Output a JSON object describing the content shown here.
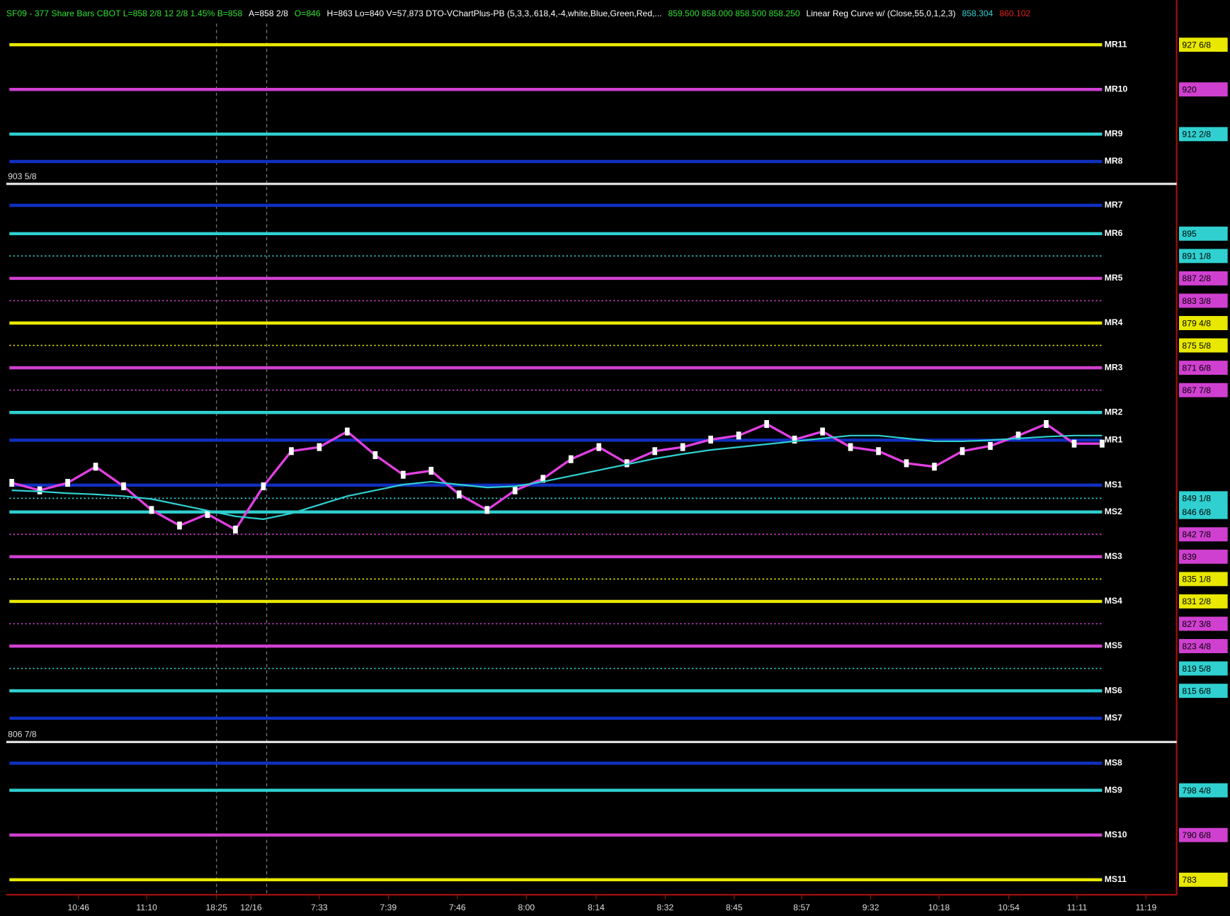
{
  "chart_data": {
    "type": "pivot-levels",
    "header": [
      {
        "text": "SF09 - 377 Share Bars CBOT L=858 2/8 12 2/8 1.45% B=858",
        "color": "#30e030"
      },
      {
        "text": "A=858 2/8",
        "color": "#ffffff"
      },
      {
        "text": "O=846",
        "color": "#30e030"
      },
      {
        "text": "H=863 Lo=840 V=57,873 DTO-VChartPlus-PB (5,3,3,.618,4,-4,white,Blue,Green,Red,...",
        "color": "#ffffff"
      },
      {
        "text": "859.500 858.000 858.500 858.250",
        "color": "#30e030"
      },
      {
        "text": "Linear Reg Curve w/ (Close,55,0,1,2,3)",
        "color": "#ffffff"
      },
      {
        "text": "858.304",
        "color": "#30d0d0"
      },
      {
        "text": "860.102",
        "color": "#e02020"
      }
    ],
    "ylim": [
      780.4,
      934.4
    ],
    "levels": [
      {
        "name": "MR11",
        "value": 927.75,
        "color": "#e8e800"
      },
      {
        "name": "MR10",
        "value": 920,
        "color": "#d040d0"
      },
      {
        "name": "MR9",
        "value": 912.25,
        "color": "#30d0d0"
      },
      {
        "name": "MR8",
        "value": 907.5,
        "color": "#1030c0"
      },
      {
        "name": "MR7",
        "value": 899.9,
        "color": "#1030c0"
      },
      {
        "name": "MR6",
        "value": 895,
        "color": "#30d0d0"
      },
      {
        "name": "MR5",
        "value": 887.25,
        "color": "#d040d0"
      },
      {
        "name": "MR4",
        "value": 879.5,
        "color": "#e8e800"
      },
      {
        "name": "MR3",
        "value": 871.75,
        "color": "#d040d0"
      },
      {
        "name": "MR2",
        "value": 864,
        "color": "#30d0d0"
      },
      {
        "name": "MR1",
        "value": 859.2,
        "color": "#1030c0"
      },
      {
        "name": "MS1",
        "value": 851.4,
        "color": "#1030c0"
      },
      {
        "name": "MS2",
        "value": 846.75,
        "color": "#30d0d0"
      },
      {
        "name": "MS3",
        "value": 839,
        "color": "#d040d0"
      },
      {
        "name": "MS4",
        "value": 831.25,
        "color": "#e8e800"
      },
      {
        "name": "MS5",
        "value": 823.5,
        "color": "#d040d0"
      },
      {
        "name": "MS6",
        "value": 815.75,
        "color": "#30d0d0"
      },
      {
        "name": "MS7",
        "value": 811,
        "color": "#1030c0"
      },
      {
        "name": "MS8",
        "value": 803.2,
        "color": "#1030c0"
      },
      {
        "name": "MS9",
        "value": 798.5,
        "color": "#30d0d0"
      },
      {
        "name": "MS10",
        "value": 790.75,
        "color": "#d040d0"
      },
      {
        "name": "MS11",
        "value": 783,
        "color": "#e8e800"
      }
    ],
    "markers": [
      {
        "label": "903 5/8",
        "value": 903.625
      },
      {
        "label": "806 7/8",
        "value": 806.875
      }
    ],
    "yticks": [
      {
        "value": 927.75,
        "label": "927 6/8",
        "color": "#e8e800"
      },
      {
        "value": 920,
        "label": "920",
        "color": "#d040d0"
      },
      {
        "value": 912.25,
        "label": "912 2/8",
        "color": "#30d0d0"
      },
      {
        "value": 895,
        "label": "895",
        "color": "#30d0d0"
      },
      {
        "value": 891.125,
        "label": "891 1/8",
        "color": "#30d0d0",
        "dotted": true
      },
      {
        "value": 887.25,
        "label": "887 2/8",
        "color": "#d040d0"
      },
      {
        "value": 883.375,
        "label": "883 3/8",
        "color": "#d040d0",
        "dotted": true
      },
      {
        "value": 879.5,
        "label": "879 4/8",
        "color": "#e8e800"
      },
      {
        "value": 875.625,
        "label": "875 5/8",
        "color": "#e8e800",
        "dotted": true
      },
      {
        "value": 871.75,
        "label": "871 6/8",
        "color": "#d040d0"
      },
      {
        "value": 867.875,
        "label": "867 7/8",
        "color": "#d040d0",
        "dotted": true
      },
      {
        "value": 849.125,
        "label": "849 1/8",
        "color": "#30d0d0",
        "dotted": true
      },
      {
        "value": 846.75,
        "label": "846 6/8",
        "color": "#30d0d0"
      },
      {
        "value": 842.875,
        "label": "842 7/8",
        "color": "#d040d0",
        "dotted": true
      },
      {
        "value": 839,
        "label": "839",
        "color": "#d040d0"
      },
      {
        "value": 835.125,
        "label": "835 1/8",
        "color": "#e8e800",
        "dotted": true
      },
      {
        "value": 831.25,
        "label": "831 2/8",
        "color": "#e8e800"
      },
      {
        "value": 827.375,
        "label": "827 3/8",
        "color": "#d040d0",
        "dotted": true
      },
      {
        "value": 823.5,
        "label": "823 4/8",
        "color": "#d040d0"
      },
      {
        "value": 819.625,
        "label": "819 5/8",
        "color": "#30d0d0",
        "dotted": true
      },
      {
        "value": 815.75,
        "label": "815 6/8",
        "color": "#30d0d0"
      },
      {
        "value": 798.5,
        "label": "798 4/8",
        "color": "#30d0d0"
      },
      {
        "value": 790.75,
        "label": "790 6/8",
        "color": "#d040d0"
      },
      {
        "value": 783,
        "label": "783",
        "color": "#e8e800"
      }
    ],
    "time_labels": [
      "10:46",
      "11:10",
      "18:25",
      "12/16",
      "7:33",
      "7:39",
      "7:46",
      "8:00",
      "8:14",
      "8:32",
      "8:45",
      "8:57",
      "9:32",
      "10:18",
      "10:54",
      "11:11",
      "11:19"
    ],
    "series": [
      {
        "color": "#e040e0",
        "values": [
          851.8,
          850.5,
          851.8,
          854.6,
          851.2,
          847.1,
          844.4,
          846.4,
          843.7,
          851.2,
          857.3,
          858.0,
          860.7,
          856.6,
          853.2,
          853.9,
          849.8,
          847.1,
          850.5,
          852.5,
          855.9,
          858.0,
          855.2,
          857.3,
          858.0,
          859.3,
          860.0,
          862.0,
          859.3,
          860.7,
          858.0,
          857.3,
          855.2,
          854.6,
          857.3,
          858.2,
          860.0,
          862.0,
          858.6,
          858.6
        ]
      },
      {
        "color": "#30d0d0",
        "values": [
          850.5,
          850.3,
          850.0,
          849.8,
          849.5,
          849.0,
          848.0,
          847.0,
          846.0,
          845.5,
          846.5,
          848.0,
          849.5,
          850.5,
          851.5,
          852.0,
          851.5,
          851.0,
          851.2,
          852.0,
          853.0,
          854.0,
          855.0,
          856.0,
          856.8,
          857.5,
          858.0,
          858.5,
          859.0,
          859.5,
          860.0,
          860.0,
          859.5,
          859.0,
          859.0,
          859.2,
          859.5,
          859.8,
          860.0,
          860.0
        ]
      }
    ]
  }
}
